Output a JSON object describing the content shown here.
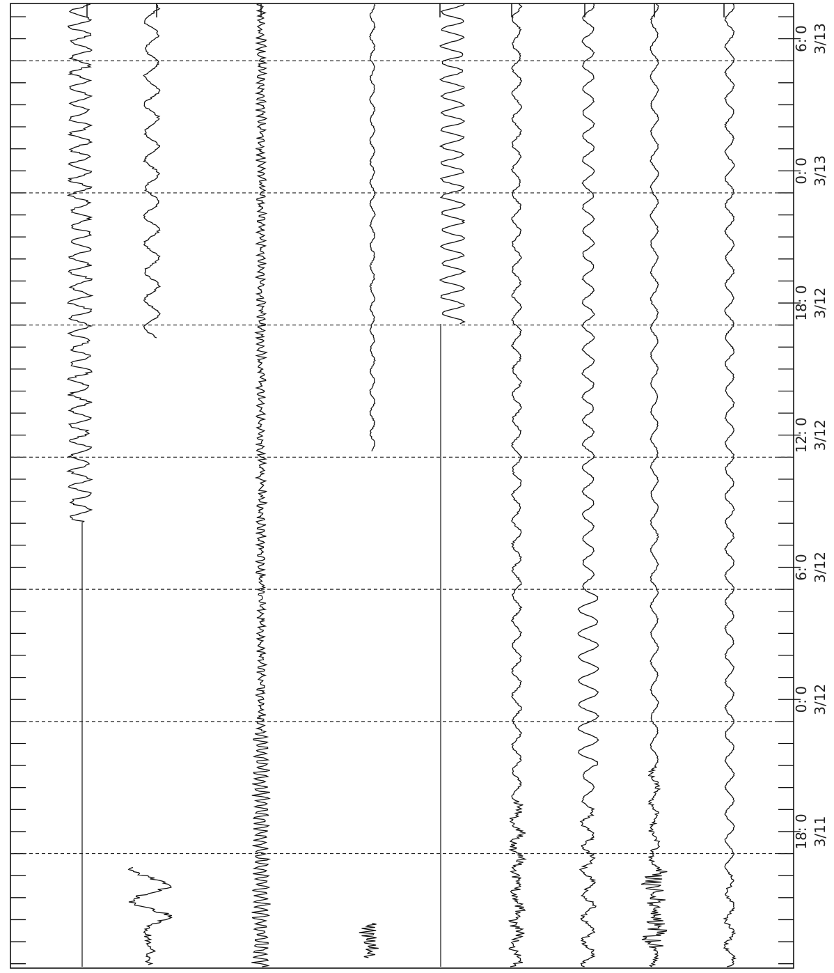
{
  "chart_data": {
    "type": "record",
    "ylim": [
      11.8,
      55.6
    ],
    "yticks": [
      12,
      13,
      14,
      15,
      16,
      17,
      18,
      19,
      20,
      21,
      22,
      23,
      24,
      25,
      26,
      27,
      28,
      29,
      30,
      31,
      32,
      33,
      34,
      35,
      36,
      37,
      38,
      39,
      40,
      41,
      42,
      43,
      44,
      45,
      46,
      47,
      48,
      49,
      50,
      51,
      52,
      53,
      54,
      55
    ],
    "grid_lines": [
      17,
      23,
      29,
      35,
      41,
      47,
      53
    ],
    "time_labels": [
      {
        "value": 54,
        "label": "6: 0",
        "date": "3/13"
      },
      {
        "value": 48,
        "label": "0: 0",
        "date": "3/13"
      },
      {
        "value": 42,
        "label": "18: 0",
        "date": "3/12"
      },
      {
        "value": 36,
        "label": "12: 0",
        "date": "3/12"
      },
      {
        "value": 30,
        "label": "6: 0",
        "date": "3/12"
      },
      {
        "value": 24,
        "label": "0: 0",
        "date": "3/12"
      },
      {
        "value": 18,
        "label": "18: 0",
        "date": "3/11"
      }
    ]
  }
}
